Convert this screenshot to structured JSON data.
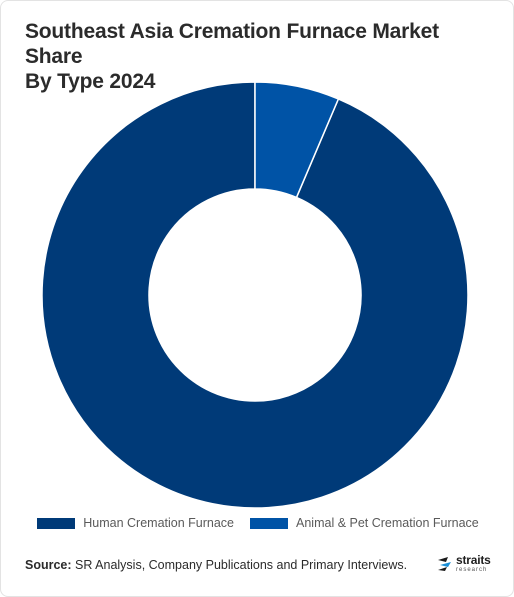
{
  "title_line1": "Southeast Asia Cremation Furnace Market Share",
  "title_line2": "By Type 2024",
  "chart_data": {
    "type": "pie",
    "variant": "donut",
    "title": "Southeast Asia Cremation Furnace Market Share By Type 2024",
    "categories": [
      "Human Cremation Furnace",
      "Animal & Pet Cremation Furnace"
    ],
    "values": [
      93.6,
      6.4
    ],
    "colors": [
      "#003a78",
      "#0053a6"
    ],
    "legend_position": "bottom"
  },
  "legend": {
    "items": [
      {
        "label": "Human Cremation Furnace",
        "color": "#003a78"
      },
      {
        "label": "Animal & Pet Cremation Furnace",
        "color": "#0053a6"
      }
    ]
  },
  "source": {
    "label": "Source:",
    "text": " SR Analysis, Company Publications and Primary Interviews."
  },
  "logo": {
    "name": "straits",
    "tagline": "research",
    "icon": "straits-logo-icon"
  }
}
